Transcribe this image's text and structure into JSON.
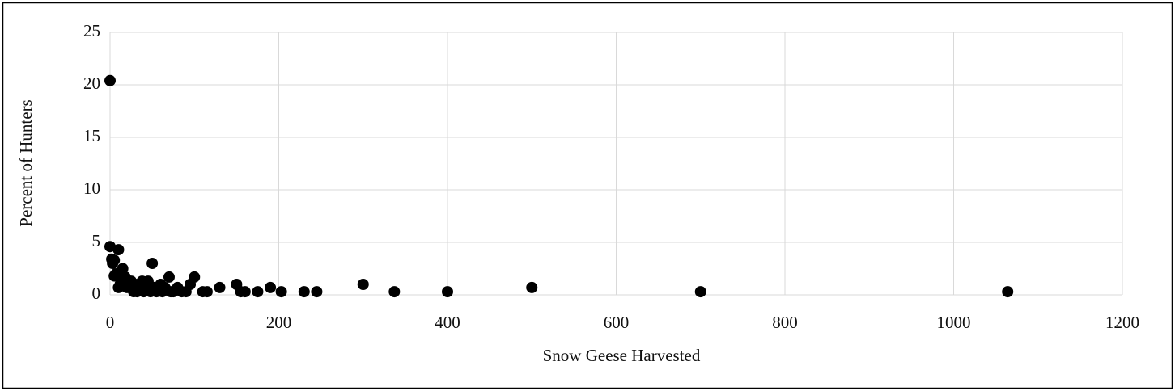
{
  "chart_data": {
    "type": "scatter",
    "x_label": "Snow Geese Harvested",
    "y_label": "Percent of Hunters",
    "color": "#000000",
    "grid": true,
    "xlim": [
      0,
      1200
    ],
    "xticks": [
      0,
      200,
      400,
      600,
      800,
      1000,
      1200
    ],
    "ylim": [
      0,
      25
    ],
    "yticks": [
      0,
      5,
      10,
      15,
      20,
      25
    ],
    "x": [
      0,
      0,
      2,
      3,
      5,
      5,
      7,
      10,
      10,
      12,
      15,
      15,
      18,
      20,
      22,
      25,
      28,
      30,
      32,
      35,
      38,
      40,
      42,
      45,
      48,
      50,
      52,
      55,
      60,
      62,
      65,
      70,
      72,
      75,
      80,
      85,
      90,
      95,
      100,
      110,
      115,
      130,
      150,
      155,
      160,
      175,
      190,
      203,
      230,
      245,
      300,
      337,
      400,
      500,
      700,
      1064
    ],
    "values": [
      20.4,
      4.6,
      3.4,
      3.0,
      1.8,
      3.3,
      2.0,
      4.3,
      0.7,
      1.0,
      2.5,
      1.3,
      1.7,
      0.7,
      1.0,
      1.3,
      0.3,
      1.0,
      0.3,
      0.7,
      1.3,
      0.3,
      1.0,
      1.3,
      0.3,
      3.0,
      0.7,
      0.3,
      1.0,
      0.3,
      0.7,
      1.7,
      0.3,
      0.3,
      0.7,
      0.3,
      0.3,
      1.0,
      1.7,
      0.3,
      0.3,
      0.7,
      1.0,
      0.3,
      0.3,
      0.3,
      0.7,
      0.3,
      0.3,
      0.3,
      1.0,
      0.3,
      0.3,
      0.7,
      0.3,
      0.3
    ]
  }
}
